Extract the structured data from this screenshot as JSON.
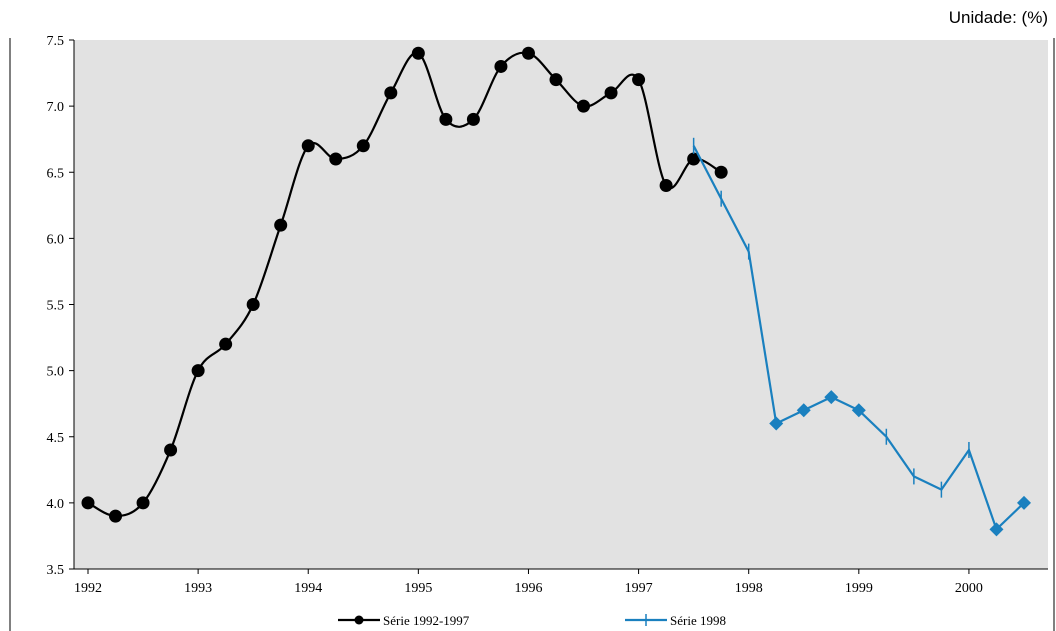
{
  "unit_label": "Unidade: (%)",
  "chart_data": {
    "type": "line",
    "title": "",
    "xlabel": "",
    "ylabel": "",
    "ylim": [
      3.5,
      7.5
    ],
    "xlim": [
      1992,
      2000.6
    ],
    "y_ticks": [
      "3.5",
      "4.0",
      "4.5",
      "5.0",
      "5.5",
      "6.0",
      "6.5",
      "7.0",
      "7.5"
    ],
    "x_ticks": [
      "1992",
      "1993",
      "1994",
      "1995",
      "1996",
      "1997",
      "1998",
      "1999",
      "2000"
    ],
    "grid": false,
    "legend_position": "bottom",
    "series": [
      {
        "name": "Série 1992-1997",
        "color": "#000000",
        "marker": "circle",
        "smooth": true,
        "x": [
          1992.0,
          1992.25,
          1992.5,
          1992.75,
          1993.0,
          1993.25,
          1993.5,
          1993.75,
          1994.0,
          1994.25,
          1994.5,
          1994.75,
          1995.0,
          1995.25,
          1995.5,
          1995.75,
          1996.0,
          1996.25,
          1996.5,
          1996.75,
          1997.0,
          1997.25,
          1997.5,
          1997.75
        ],
        "values": [
          4.0,
          3.9,
          4.0,
          4.4,
          5.0,
          5.2,
          5.5,
          6.1,
          6.7,
          6.6,
          6.7,
          7.1,
          7.4,
          6.9,
          6.9,
          7.3,
          7.4,
          7.2,
          7.0,
          7.1,
          7.2,
          6.4,
          6.6,
          6.5
        ]
      },
      {
        "name": "Série 1998",
        "color": "#1a80bf",
        "marker": "diamond",
        "smooth": false,
        "x": [
          1997.5,
          1997.75,
          1998.0,
          1998.25,
          1998.5,
          1998.75,
          1999.0,
          1999.25,
          1999.5,
          1999.75,
          2000.0,
          2000.25,
          2000.5
        ],
        "values": [
          6.7,
          6.3,
          5.9,
          4.6,
          4.7,
          4.8,
          4.7,
          4.5,
          4.2,
          4.1,
          4.4,
          3.8,
          4.0
        ],
        "marker_flags": [
          false,
          false,
          false,
          true,
          true,
          true,
          true,
          false,
          false,
          false,
          false,
          true,
          true
        ]
      }
    ]
  }
}
